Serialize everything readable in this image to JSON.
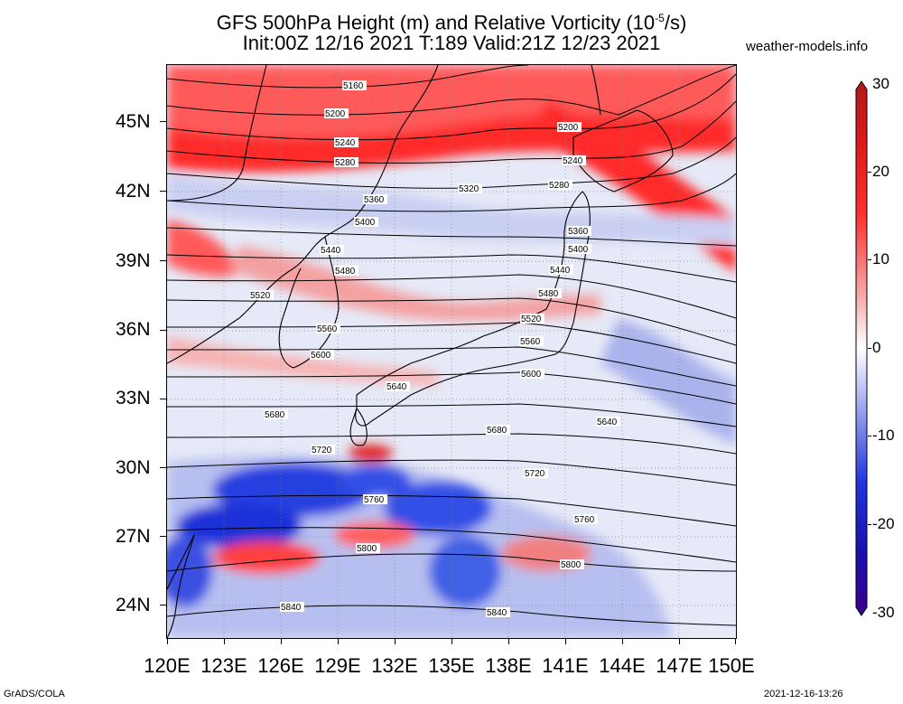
{
  "header": {
    "title_line1": "GFS 500hPa Height (m) and Relative Vorticity (10",
    "title_sup": "-5",
    "title_unit_end": "/s)",
    "title_line2": "Init:00Z 12/16 2021 T:189 Valid:21Z 12/23 2021",
    "site": "weather-models.info"
  },
  "axes": {
    "lat_labels": [
      "45N",
      "42N",
      "39N",
      "36N",
      "33N",
      "30N",
      "27N",
      "24N"
    ],
    "lon_labels": [
      "120E",
      "123E",
      "126E",
      "129E",
      "132E",
      "135E",
      "138E",
      "141E",
      "144E",
      "147E",
      "150E"
    ],
    "lat_range": [
      22.5,
      47.5
    ],
    "lon_range": [
      120,
      150
    ]
  },
  "colorbar": {
    "labels": [
      "30",
      "20",
      "10",
      "0",
      "-10",
      "-20",
      "-30"
    ],
    "range": [
      -30,
      30
    ],
    "colors": {
      "max": "#b01010",
      "pos": "#ff2020",
      "zero": "#ffffff",
      "neg": "#2030e0",
      "min": "#3a0099"
    }
  },
  "contours": {
    "labels": [
      {
        "text": "5160"
      },
      {
        "text": "5200"
      },
      {
        "text": "5200"
      },
      {
        "text": "5240"
      },
      {
        "text": "5240"
      },
      {
        "text": "5280"
      },
      {
        "text": "5280"
      },
      {
        "text": "5320"
      },
      {
        "text": "5360"
      },
      {
        "text": "5360"
      },
      {
        "text": "5400"
      },
      {
        "text": "5400"
      },
      {
        "text": "5440"
      },
      {
        "text": "5440"
      },
      {
        "text": "5480"
      },
      {
        "text": "5480"
      },
      {
        "text": "5520"
      },
      {
        "text": "5520"
      },
      {
        "text": "5560"
      },
      {
        "text": "5560"
      },
      {
        "text": "5600"
      },
      {
        "text": "5600"
      },
      {
        "text": "5640"
      },
      {
        "text": "5640"
      },
      {
        "text": "5680"
      },
      {
        "text": "5680"
      },
      {
        "text": "5720"
      },
      {
        "text": "5720"
      },
      {
        "text": "5760"
      },
      {
        "text": "5760"
      },
      {
        "text": "5800"
      },
      {
        "text": "5800"
      },
      {
        "text": "5840"
      },
      {
        "text": "5840"
      }
    ]
  },
  "footer": {
    "left": "GrADS/COLA",
    "right": "2021-12-16-13:26"
  }
}
